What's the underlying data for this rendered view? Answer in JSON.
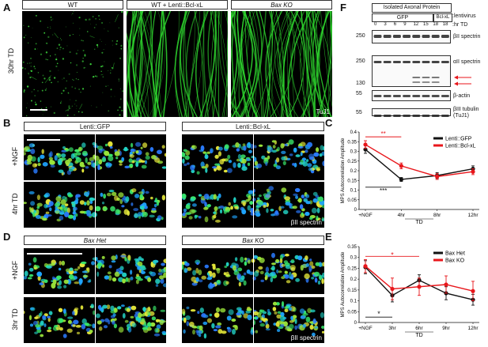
{
  "panel_letters": {
    "A": "A",
    "B": "B",
    "C": "C",
    "D": "D",
    "E": "E",
    "F": "F"
  },
  "panelA": {
    "headers": [
      "WT",
      "WT + Lenti::Bcl-xL",
      "Bax KO"
    ],
    "header_italic_part": "Bax",
    "row_label": "30hr TD",
    "corner_label": "TuJ1"
  },
  "panelB": {
    "headers": [
      "Lenti::GFP",
      "Lenti::Bcl-xL"
    ],
    "row_labels": [
      "+NGF",
      "4hr TD"
    ],
    "stain_label": "βII spectrin"
  },
  "panelD": {
    "headers": [
      "Bax Het",
      "Bax KO"
    ],
    "row_labels": [
      "+NGF",
      "3hr TD"
    ],
    "stain_label": "βII spectrin"
  },
  "panelF": {
    "title": "Isolated Axonal Protein",
    "groups": [
      "GFP",
      "Bcl-xL"
    ],
    "lentivirus_label": ":lentivirus",
    "hr_label": ":hr TD",
    "timepoints": [
      "0",
      "3",
      "6",
      "9",
      "12",
      "15",
      "18",
      "18"
    ],
    "blots": [
      {
        "mw": "250",
        "label": "βII spectrin"
      },
      {
        "mw": "250",
        "label": "αII spectrin"
      },
      {
        "mw": "130",
        "label": ""
      },
      {
        "mw": "55",
        "label": "β-actin"
      },
      {
        "mw": "55",
        "label": "βIII tubulin (TuJ1)"
      }
    ],
    "arrow_color": "#e8161b"
  },
  "chart_data": [
    {
      "type": "line",
      "panel": "C",
      "xlabel": "TD",
      "ylabel": "MPS Autocorrelation Amplitude",
      "categories": [
        "+NGF",
        "4hr",
        "8hr",
        "12hr"
      ],
      "ylim": [
        0,
        0.4
      ],
      "yticks": [
        "0",
        "0.05",
        "0.1",
        "0.15",
        "0.2",
        "0.25",
        "0.3",
        "0.35",
        "0.4"
      ],
      "series": [
        {
          "name": "Lenti::GFP",
          "color": "#111111",
          "values": [
            0.31,
            0.155,
            0.175,
            0.21
          ],
          "errors": [
            0.02,
            0.01,
            0.015,
            0.015
          ]
        },
        {
          "name": "Lenti::Bcl-xL",
          "color": "#e8161b",
          "values": [
            0.335,
            0.225,
            0.17,
            0.195
          ],
          "errors": [
            0.02,
            0.015,
            0.015,
            0.015
          ]
        }
      ],
      "annotations": [
        {
          "text": "**",
          "color": "#e8161b"
        },
        {
          "text": "***",
          "color": "#111111"
        }
      ],
      "legend_position": "top-right"
    },
    {
      "type": "line",
      "panel": "E",
      "xlabel": "TD",
      "ylabel": "MPS Autocorrelation Amplitude",
      "categories": [
        "+NGF",
        "3hr",
        "6hr",
        "9hr",
        "12hr"
      ],
      "ylim": [
        0,
        0.35
      ],
      "yticks": [
        "0",
        "0.05",
        "0.1",
        "0.15",
        "0.2",
        "0.25",
        "0.3",
        "0.35"
      ],
      "series": [
        {
          "name": "Bax Het",
          "color": "#111111",
          "values": [
            0.255,
            0.125,
            0.195,
            0.135,
            0.105
          ],
          "errors": [
            0.03,
            0.03,
            0.025,
            0.03,
            0.025
          ]
        },
        {
          "name": "Bax KO",
          "color": "#e8161b",
          "values": [
            0.26,
            0.155,
            0.165,
            0.175,
            0.145
          ],
          "errors": [
            0.03,
            0.05,
            0.04,
            0.04,
            0.045
          ]
        }
      ],
      "annotations": [
        {
          "text": "*",
          "color": "#e8161b"
        },
        {
          "text": "*",
          "color": "#111111"
        }
      ],
      "legend_position": "top-right"
    }
  ]
}
